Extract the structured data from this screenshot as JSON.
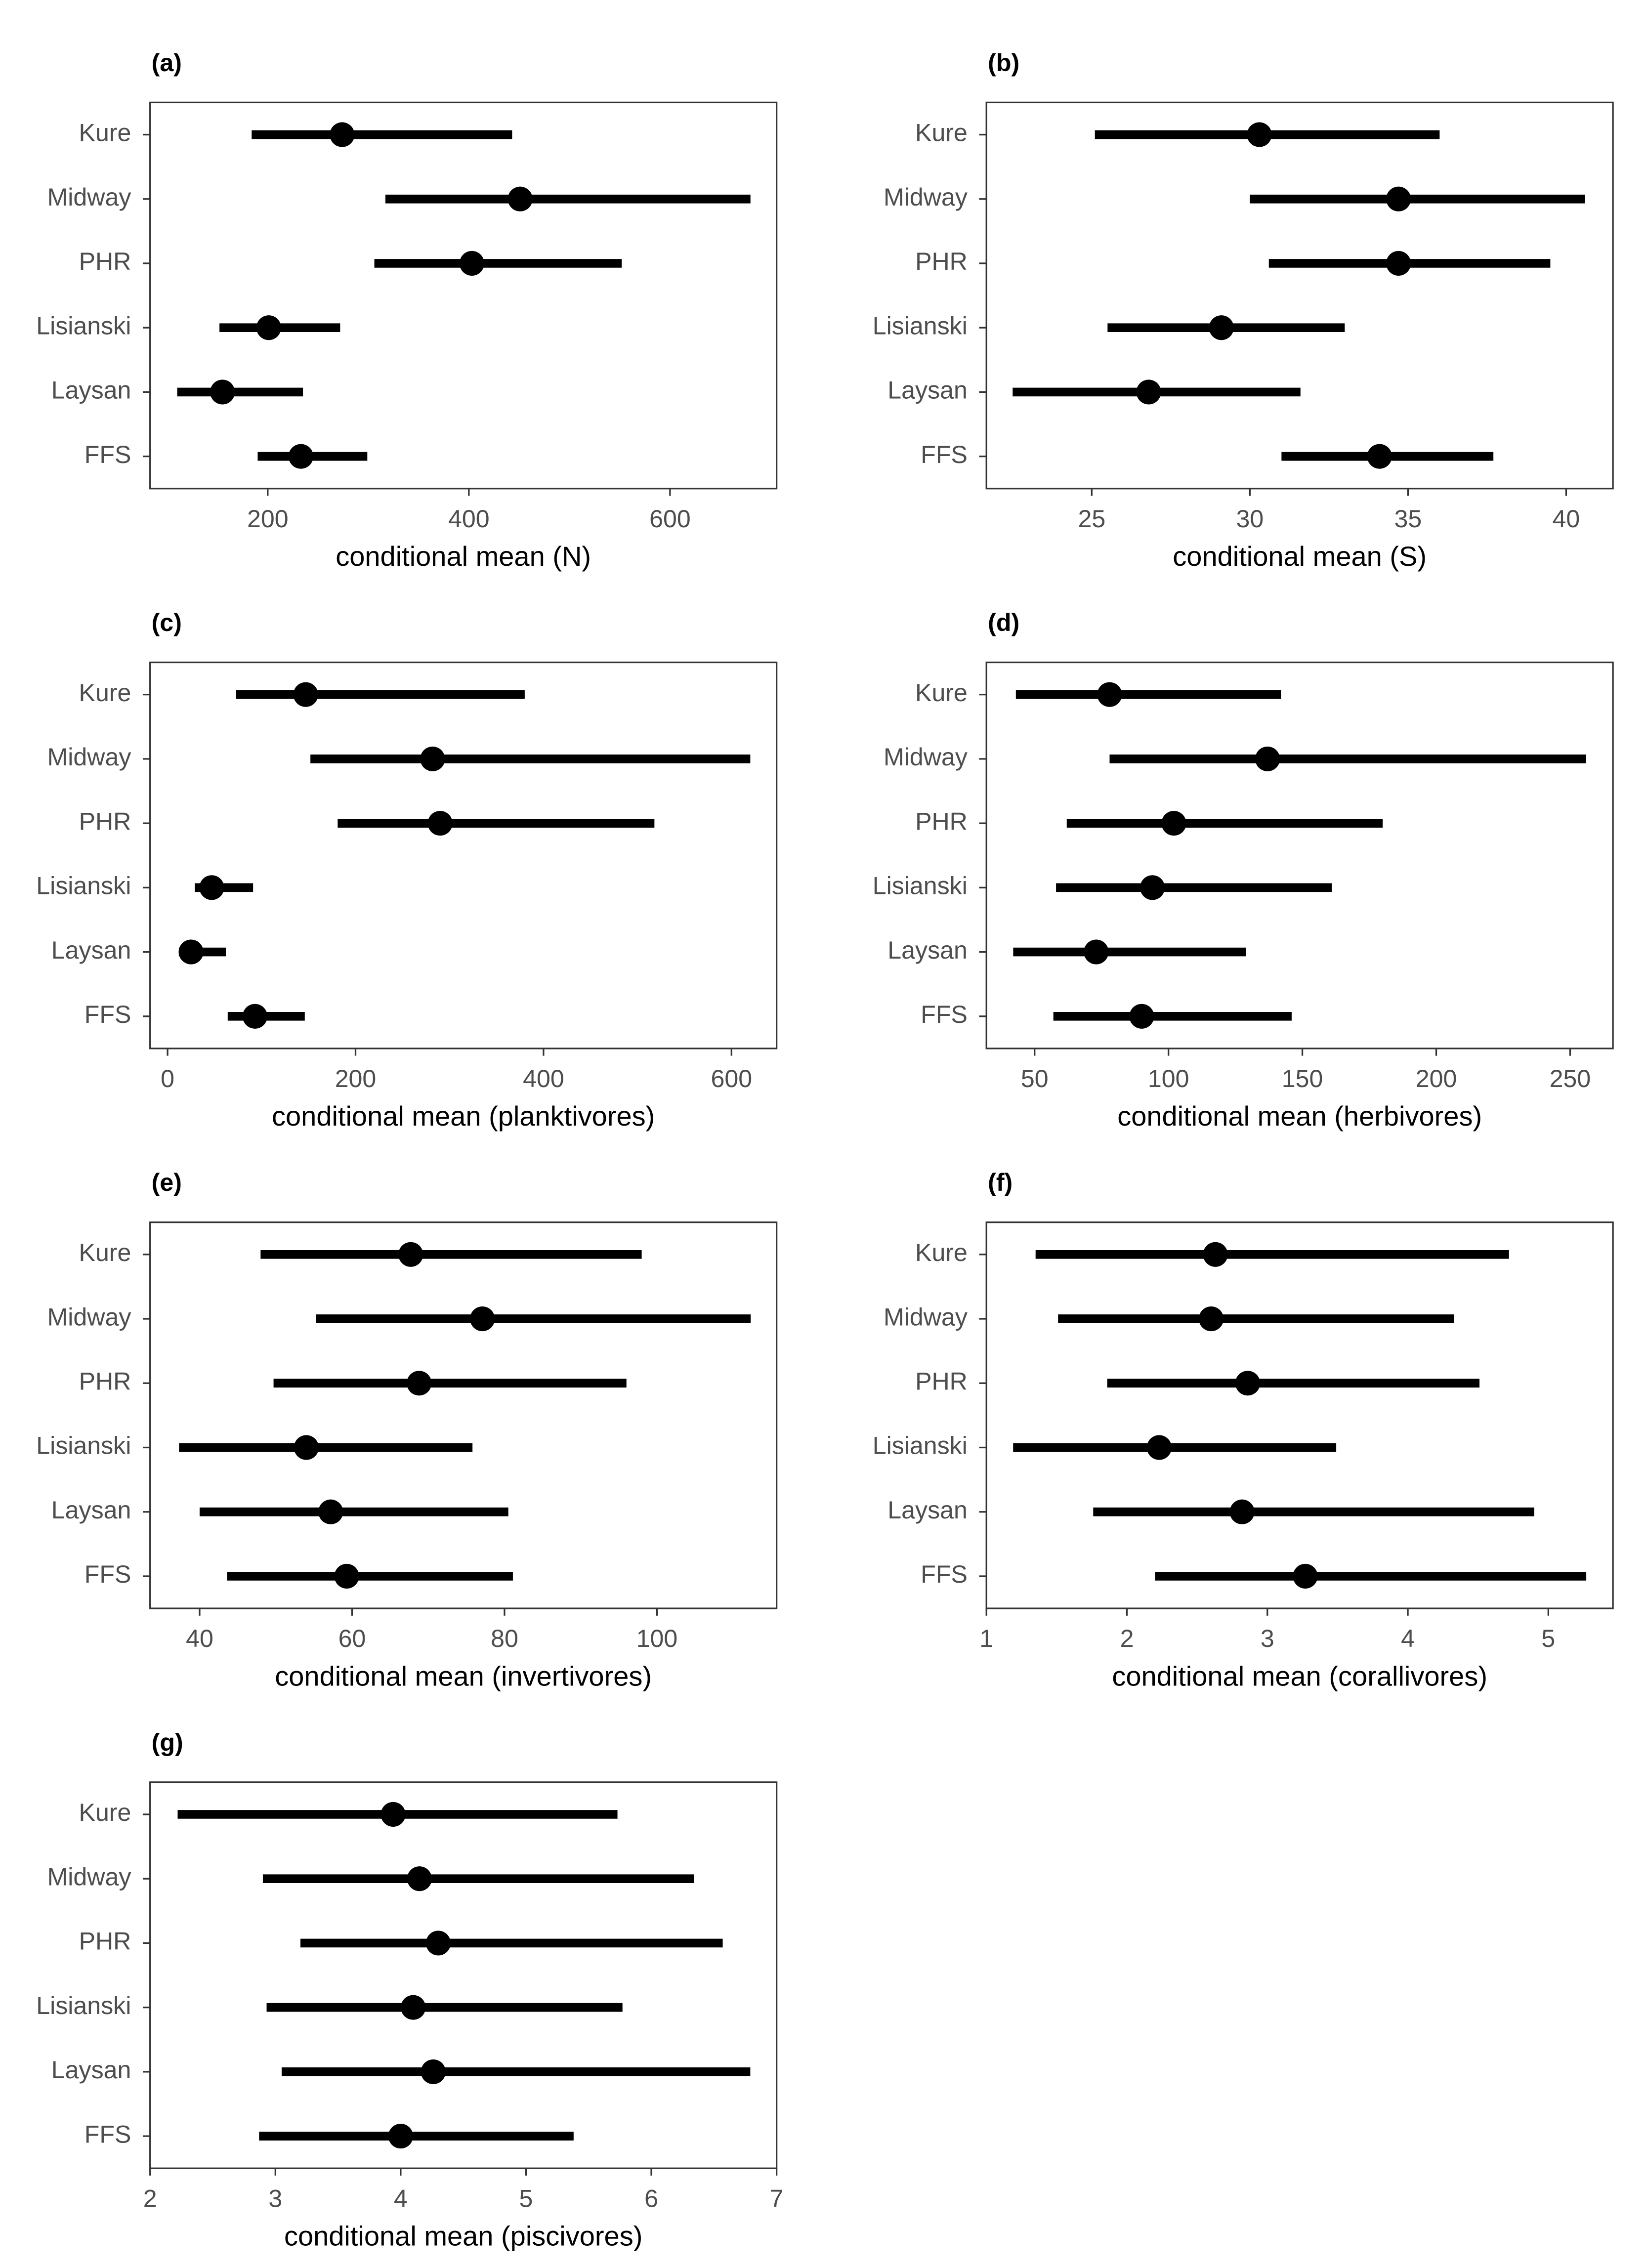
{
  "chart_data": [
    {
      "type": "pointrange",
      "title": "(a)",
      "xlabel": "conditional mean (N)",
      "color": "#000000",
      "categories": [
        "Kure",
        "Midway",
        "PHR",
        "Lisianski",
        "Laysan",
        "FFS"
      ],
      "values": [
        274,
        451,
        403,
        201,
        155,
        233
      ],
      "lower": [
        184,
        317,
        306,
        152,
        110,
        190
      ],
      "upper": [
        443,
        680,
        552,
        272,
        235,
        299
      ],
      "xlim": [
        83,
        706
      ],
      "xticks": [
        200,
        400,
        600
      ]
    },
    {
      "type": "pointrange",
      "title": "(b)",
      "xlabel": "conditional mean (S)",
      "color": "#000000",
      "categories": [
        "Kure",
        "Midway",
        "PHR",
        "Lisianski",
        "Laysan",
        "FFS"
      ],
      "values": [
        30.3,
        34.7,
        34.7,
        29.1,
        26.8,
        34.1
      ],
      "lower": [
        25.1,
        30.0,
        30.6,
        25.5,
        22.5,
        31.0
      ],
      "upper": [
        36.0,
        40.6,
        39.5,
        33.0,
        31.6,
        37.7
      ],
      "xlim": [
        21.67,
        41.48
      ],
      "xticks": [
        25,
        30,
        35,
        40
      ]
    },
    {
      "type": "pointrange",
      "title": "(c)",
      "xlabel": "conditional mean (planktivores)",
      "color": "#000000",
      "categories": [
        "Kure",
        "Midway",
        "PHR",
        "Lisianski",
        "Laysan",
        "FFS"
      ],
      "values": [
        147,
        282,
        290,
        47,
        25,
        93
      ],
      "lower": [
        73,
        152,
        181,
        29,
        12,
        64
      ],
      "upper": [
        380,
        620,
        518,
        91,
        62,
        146
      ],
      "xlim": [
        -18.6,
        648
      ],
      "xticks": [
        0,
        200,
        400,
        600
      ]
    },
    {
      "type": "pointrange",
      "title": "(d)",
      "xlabel": "conditional mean (herbivores)",
      "color": "#000000",
      "categories": [
        "Kure",
        "Midway",
        "PHR",
        "Lisianski",
        "Laysan",
        "FFS"
      ],
      "values": [
        78,
        137,
        102,
        94,
        73,
        90
      ],
      "lower": [
        43,
        78,
        62,
        58,
        42,
        57
      ],
      "upper": [
        142,
        256,
        180,
        161,
        129,
        146
      ],
      "xlim": [
        32,
        266
      ],
      "xticks": [
        50,
        100,
        150,
        200,
        250
      ]
    },
    {
      "type": "pointrange",
      "title": "(e)",
      "xlabel": "conditional mean (invertivores)",
      "color": "#000000",
      "categories": [
        "Kure",
        "Midway",
        "PHR",
        "Lisianski",
        "Laysan",
        "FFS"
      ],
      "values": [
        67.7,
        77.1,
        68.8,
        54,
        57.2,
        59.3
      ],
      "lower": [
        48,
        55.3,
        49.7,
        37.3,
        40,
        43.6
      ],
      "upper": [
        98,
        112.3,
        96.0,
        75.8,
        80.5,
        81.1
      ],
      "xlim": [
        33.5,
        115.7
      ],
      "xticks": [
        40,
        60,
        80,
        100
      ]
    },
    {
      "type": "pointrange",
      "title": "(f)",
      "xlabel": "conditional mean (corallivores)",
      "color": "#000000",
      "categories": [
        "Kure",
        "Midway",
        "PHR",
        "Lisianski",
        "Laysan",
        "FFS"
      ],
      "values": [
        2.63,
        2.6,
        2.86,
        2.23,
        2.82,
        3.27
      ],
      "lower": [
        1.35,
        1.51,
        1.86,
        1.19,
        1.76,
        2.2
      ],
      "upper": [
        4.72,
        4.33,
        4.51,
        3.49,
        4.9,
        5.27
      ],
      "xlim": [
        1,
        5.46
      ],
      "xticks": [
        1,
        2,
        3,
        4,
        5
      ]
    },
    {
      "type": "pointrange",
      "title": "(g)",
      "xlabel": "conditional mean (piscivores)",
      "color": "#000000",
      "categories": [
        "Kure",
        "Midway",
        "PHR",
        "Lisianski",
        "Laysan",
        "FFS"
      ],
      "values": [
        3.94,
        4.15,
        4.3,
        4.1,
        4.26,
        4.0
      ],
      "lower": [
        2.22,
        2.9,
        3.2,
        2.93,
        3.05,
        2.87
      ],
      "upper": [
        5.73,
        6.34,
        6.57,
        5.77,
        6.79,
        5.38
      ],
      "xlim": [
        2,
        7
      ],
      "xticks": [
        2,
        3,
        4,
        5,
        6,
        7
      ]
    }
  ]
}
